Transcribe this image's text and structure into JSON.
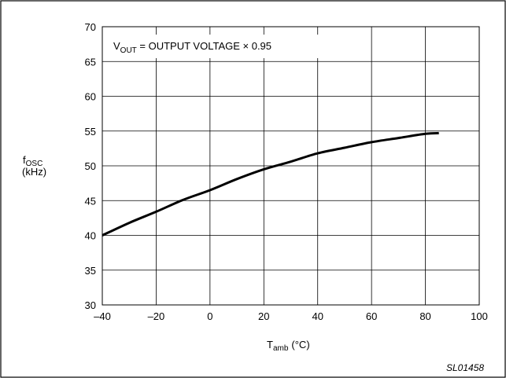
{
  "chart_data": {
    "type": "line",
    "title": "",
    "xlabel": {
      "main": "T",
      "sub": "amb",
      "unit": "(°C)"
    },
    "ylabel": {
      "main": "f",
      "sub": "OSC",
      "unit": "(kHz)"
    },
    "xlim": [
      -40,
      100
    ],
    "ylim": [
      30,
      70
    ],
    "xticks": [
      -40,
      -20,
      0,
      20,
      40,
      60,
      80,
      100
    ],
    "yticks": [
      30,
      35,
      40,
      45,
      50,
      55,
      60,
      65,
      70
    ],
    "xtick_labels": [
      "–40",
      "–20",
      "0",
      "20",
      "40",
      "60",
      "80",
      "100"
    ],
    "ytick_labels": [
      "30",
      "35",
      "40",
      "45",
      "50",
      "55",
      "60",
      "65",
      "70"
    ],
    "grid": true,
    "annotation": {
      "v": "V",
      "sub": "OUT",
      "rest": " = OUTPUT VOLTAGE × 0.95"
    },
    "figure_code": "SL01458",
    "series": [
      {
        "color": "#000000",
        "x": [
          -40,
          -30,
          -20,
          -10,
          0,
          10,
          20,
          30,
          40,
          50,
          60,
          70,
          80,
          85
        ],
        "y": [
          40.0,
          41.8,
          43.4,
          45.1,
          46.5,
          48.1,
          49.5,
          50.6,
          51.8,
          52.6,
          53.4,
          54.0,
          54.6,
          54.7
        ]
      }
    ]
  }
}
